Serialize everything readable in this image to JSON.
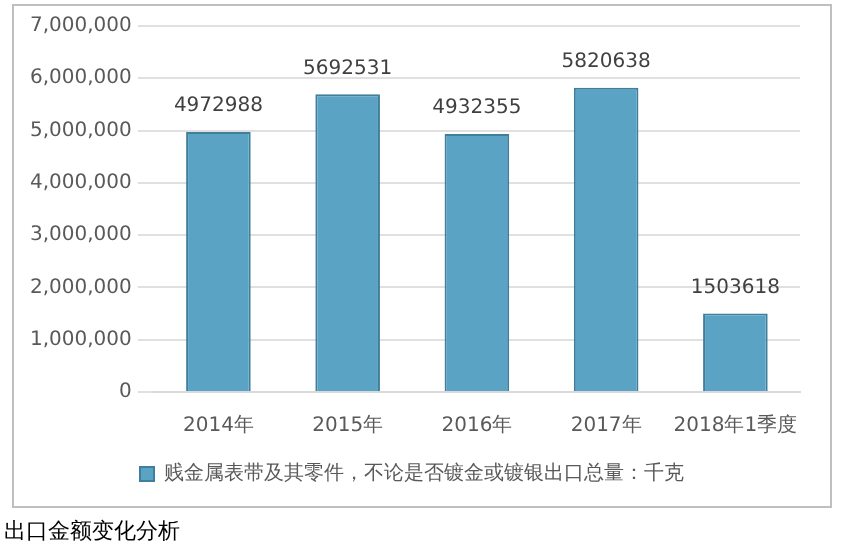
{
  "chart_data": {
    "type": "bar",
    "categories": [
      "2014年",
      "2015年",
      "2016年",
      "2017年",
      "2018年1季度"
    ],
    "series": [
      {
        "name": "贱金属表带及其零件，不论是否镀金或镀银出口总量：千克",
        "color": "#5ba3c4",
        "values": [
          4972988,
          5692531,
          4932355,
          5820638,
          1503618
        ]
      }
    ],
    "ylim": [
      0,
      7000000
    ],
    "yticks": [
      {
        "value": 0,
        "label": "0"
      },
      {
        "value": 1000000,
        "label": "1,000,000"
      },
      {
        "value": 2000000,
        "label": "2,000,000"
      },
      {
        "value": 3000000,
        "label": "3,000,000"
      },
      {
        "value": 4000000,
        "label": "4,000,000"
      },
      {
        "value": 5000000,
        "label": "5,000,000"
      },
      {
        "value": 6000000,
        "label": "6,000,000"
      },
      {
        "value": 7000000,
        "label": "7,000,000"
      }
    ],
    "grid": "y",
    "legend": "bottom",
    "data_labels": true,
    "annotations": [
      "出口金额变化分析"
    ]
  }
}
